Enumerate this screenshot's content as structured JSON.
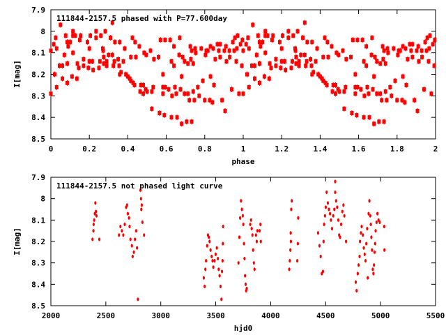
{
  "chart_data": [
    {
      "type": "scatter",
      "title": "111844-2157.5 phased with P=77.600day",
      "xlabel": "phase",
      "ylabel": "I[mag]",
      "xlim": [
        0,
        2
      ],
      "ylim": [
        7.9,
        8.5
      ],
      "y_inverted": true,
      "grid": false,
      "xticks": [
        0,
        0.2,
        0.4,
        0.6,
        0.8,
        1,
        1.2,
        1.4,
        1.6,
        1.8,
        2
      ],
      "xtick_labels": [
        "0",
        "0.2",
        "0.4",
        "0.6",
        "0.8",
        "1",
        "1.2",
        "1.4",
        "1.6",
        "1.8",
        "2"
      ],
      "yticks": [
        7.9,
        8.0,
        8.1,
        8.2,
        8.3,
        8.4,
        8.5
      ],
      "ytick_labels": [
        "7.9",
        "8",
        "8.1",
        "8.2",
        "8.3",
        "8.4",
        "8.5"
      ],
      "color": "#ff0000",
      "repeat_phase": true,
      "points": [
        [
          0.0,
          8.29
        ],
        [
          0.0,
          8.09
        ],
        [
          0.015,
          8.06
        ],
        [
          0.02,
          8.2
        ],
        [
          0.025,
          8.03
        ],
        [
          0.03,
          8.26
        ],
        [
          0.03,
          8.08
        ],
        [
          0.045,
          8.16
        ],
        [
          0.05,
          7.97
        ],
        [
          0.06,
          8.16
        ],
        [
          0.06,
          8.22
        ],
        [
          0.07,
          8.11
        ],
        [
          0.077,
          8.02
        ],
        [
          0.085,
          8.05
        ],
        [
          0.085,
          8.15
        ],
        [
          0.085,
          8.24
        ],
        [
          0.09,
          8.07
        ],
        [
          0.1,
          8.05
        ],
        [
          0.11,
          8.21
        ],
        [
          0.115,
          8.0
        ],
        [
          0.115,
          8.02
        ],
        [
          0.115,
          8.1
        ],
        [
          0.127,
          8.02
        ],
        [
          0.135,
          8.22
        ],
        [
          0.138,
          8.15
        ],
        [
          0.145,
          8.17
        ],
        [
          0.15,
          8.04
        ],
        [
          0.155,
          8.02
        ],
        [
          0.17,
          8.13
        ],
        [
          0.17,
          8.16
        ],
        [
          0.19,
          8.05
        ],
        [
          0.195,
          8.17
        ],
        [
          0.2,
          8.14
        ],
        [
          0.2,
          8.08
        ],
        [
          0.205,
          8.02
        ],
        [
          0.215,
          8.14
        ],
        [
          0.22,
          8.18
        ],
        [
          0.235,
          8.0
        ],
        [
          0.235,
          8.03
        ],
        [
          0.25,
          8.17
        ],
        [
          0.255,
          8.14
        ],
        [
          0.26,
          8.02
        ],
        [
          0.27,
          8.08
        ],
        [
          0.272,
          8.09
        ],
        [
          0.275,
          8.12
        ],
        [
          0.275,
          8.15
        ],
        [
          0.283,
          8.0
        ],
        [
          0.29,
          8.14
        ],
        [
          0.29,
          8.16
        ],
        [
          0.3,
          8.11
        ],
        [
          0.31,
          8.03
        ],
        [
          0.32,
          7.96
        ],
        [
          0.32,
          8.11
        ],
        [
          0.325,
          8.16
        ],
        [
          0.33,
          8.14
        ],
        [
          0.333,
          8.05
        ],
        [
          0.35,
          8.13
        ],
        [
          0.355,
          8.16
        ],
        [
          0.358,
          8.05
        ],
        [
          0.358,
          8.2
        ],
        [
          0.365,
          8.19
        ],
        [
          0.377,
          8.14
        ],
        [
          0.384,
          8.08
        ],
        [
          0.39,
          8.2
        ],
        [
          0.4,
          8.21
        ],
        [
          0.41,
          8.22
        ],
        [
          0.416,
          8.23
        ],
        [
          0.416,
          8.12
        ],
        [
          0.424,
          8.03
        ],
        [
          0.428,
          8.24
        ],
        [
          0.435,
          8.25
        ],
        [
          0.438,
          8.05
        ],
        [
          0.442,
          8.12
        ],
        [
          0.46,
          8.07
        ],
        [
          0.464,
          8.28
        ],
        [
          0.468,
          8.25
        ],
        [
          0.48,
          8.25
        ],
        [
          0.48,
          8.29
        ],
        [
          0.485,
          8.1
        ],
        [
          0.493,
          8.27
        ],
        [
          0.496,
          8.11
        ],
        [
          0.5,
          8.28
        ],
        [
          0.518,
          8.09
        ],
        [
          0.525,
          8.28
        ],
        [
          0.525,
          8.36
        ],
        [
          0.532,
          8.26
        ],
        [
          0.536,
          8.13
        ],
        [
          0.56,
          8.12
        ],
        [
          0.565,
          8.38
        ],
        [
          0.57,
          8.04
        ],
        [
          0.583,
          8.2
        ],
        [
          0.583,
          8.26
        ],
        [
          0.583,
          8.29
        ],
        [
          0.59,
          8.39
        ],
        [
          0.594,
          8.26
        ],
        [
          0.594,
          8.04
        ],
        [
          0.612,
          8.27
        ],
        [
          0.62,
          8.04
        ],
        [
          0.627,
          8.14
        ],
        [
          0.627,
          8.4
        ],
        [
          0.63,
          8.3
        ],
        [
          0.64,
          8.16
        ],
        [
          0.64,
          8.07
        ],
        [
          0.645,
          8.26
        ],
        [
          0.652,
          8.29
        ],
        [
          0.656,
          8.4
        ],
        [
          0.67,
          8.03
        ],
        [
          0.667,
          8.11
        ],
        [
          0.674,
          8.27
        ],
        [
          0.68,
          8.43
        ],
        [
          0.68,
          8.21
        ],
        [
          0.685,
          8.12
        ],
        [
          0.695,
          8.14
        ],
        [
          0.695,
          8.29
        ],
        [
          0.706,
          8.42
        ],
        [
          0.713,
          8.29
        ],
        [
          0.713,
          8.15
        ],
        [
          0.72,
          8.32
        ],
        [
          0.725,
          8.07
        ],
        [
          0.728,
          8.13
        ],
        [
          0.732,
          8.09
        ],
        [
          0.732,
          8.42
        ],
        [
          0.74,
          8.15
        ],
        [
          0.74,
          8.28
        ],
        [
          0.746,
          8.32
        ],
        [
          0.75,
          8.08
        ],
        [
          0.753,
          8.1
        ],
        [
          0.764,
          8.26
        ],
        [
          0.771,
          8.3
        ],
        [
          0.782,
          8.08
        ],
        [
          0.79,
          8.23
        ],
        [
          0.8,
          8.32
        ],
        [
          0.804,
          8.11
        ],
        [
          0.808,
          8.09
        ],
        [
          0.816,
          8.09
        ],
        [
          0.826,
          8.32
        ],
        [
          0.83,
          8.07
        ],
        [
          0.83,
          8.21
        ],
        [
          0.84,
          8.33
        ],
        [
          0.844,
          8.08
        ],
        [
          0.848,
          8.25
        ],
        [
          0.855,
          8.13
        ],
        [
          0.866,
          8.06
        ],
        [
          0.873,
          8.09
        ],
        [
          0.88,
          8.06
        ],
        [
          0.88,
          8.12
        ],
        [
          0.89,
          8.32
        ],
        [
          0.902,
          8.09
        ],
        [
          0.906,
          8.37
        ],
        [
          0.91,
          8.07
        ],
        [
          0.913,
          8.14
        ],
        [
          0.928,
          8.09
        ],
        [
          0.93,
          8.12
        ],
        [
          0.94,
          8.27
        ],
        [
          0.946,
          8.05
        ],
        [
          0.953,
          8.09
        ],
        [
          0.957,
          8.03
        ],
        [
          0.964,
          8.14
        ],
        [
          0.967,
          8.08
        ],
        [
          0.971,
          8.02
        ],
        [
          0.978,
          8.29
        ],
        [
          0.986,
          8.06
        ],
        [
          0.993,
          8.16
        ],
        [
          0.996,
          8.04
        ]
      ]
    },
    {
      "type": "scatter",
      "title": "111844-2157.5 not phased light curve",
      "xlabel": "hjd0",
      "ylabel": "I[mag]",
      "xlim": [
        2000,
        5500
      ],
      "ylim": [
        7.9,
        8.5
      ],
      "y_inverted": true,
      "grid": false,
      "xticks": [
        2000,
        2500,
        3000,
        3500,
        4000,
        4500,
        5000,
        5500
      ],
      "xtick_labels": [
        "2000",
        "2500",
        "3000",
        "3500",
        "4000",
        "4500",
        "5000",
        "5500"
      ],
      "yticks": [
        7.9,
        8.0,
        8.1,
        8.2,
        8.3,
        8.4,
        8.5
      ],
      "ytick_labels": [
        "7.9",
        "8",
        "8.1",
        "8.2",
        "8.3",
        "8.4",
        "8.5"
      ],
      "color": "#ff0000",
      "points": [
        [
          2379,
          8.19
        ],
        [
          2387,
          8.15
        ],
        [
          2389,
          8.12
        ],
        [
          2394,
          8.1
        ],
        [
          2400,
          8.07
        ],
        [
          2405,
          8.02
        ],
        [
          2410,
          8.06
        ],
        [
          2415,
          8.08
        ],
        [
          2441,
          8.19
        ],
        [
          2620,
          8.17
        ],
        [
          2633,
          8.13
        ],
        [
          2646,
          8.15
        ],
        [
          2659,
          8.17
        ],
        [
          2672,
          8.12
        ],
        [
          2685,
          8.04
        ],
        [
          2693,
          8.03
        ],
        [
          2700,
          8.07
        ],
        [
          2711,
          8.09
        ],
        [
          2716,
          8.13
        ],
        [
          2724,
          8.19
        ],
        [
          2737,
          8.22
        ],
        [
          2744,
          8.27
        ],
        [
          2755,
          8.25
        ],
        [
          2765,
          8.19
        ],
        [
          2776,
          8.15
        ],
        [
          2784,
          8.23
        ],
        [
          2792,
          8.47
        ],
        [
          2815,
          7.96
        ],
        [
          2820,
          8.0
        ],
        [
          2823,
          8.05
        ],
        [
          2827,
          8.03
        ],
        [
          2833,
          8.11
        ],
        [
          2848,
          8.17
        ],
        [
          3391,
          8.37
        ],
        [
          3399,
          8.41
        ],
        [
          3406,
          8.33
        ],
        [
          3412,
          8.29
        ],
        [
          3422,
          8.22
        ],
        [
          3429,
          8.17
        ],
        [
          3437,
          8.18
        ],
        [
          3444,
          8.2
        ],
        [
          3453,
          8.24
        ],
        [
          3463,
          8.27
        ],
        [
          3471,
          8.29
        ],
        [
          3478,
          8.32
        ],
        [
          3489,
          8.29
        ],
        [
          3499,
          8.26
        ],
        [
          3510,
          8.23
        ],
        [
          3520,
          8.28
        ],
        [
          3527,
          8.33
        ],
        [
          3535,
          8.36
        ],
        [
          3544,
          8.41
        ],
        [
          3552,
          8.47
        ],
        [
          3557,
          8.34
        ],
        [
          3562,
          8.29
        ],
        [
          3565,
          8.21
        ],
        [
          3567,
          8.13
        ],
        [
          3707,
          8.3
        ],
        [
          3715,
          8.18
        ],
        [
          3722,
          8.09
        ],
        [
          3730,
          8.01
        ],
        [
          3738,
          8.05
        ],
        [
          3746,
          8.08
        ],
        [
          3751,
          8.12
        ],
        [
          3757,
          8.21
        ],
        [
          3762,
          8.28
        ],
        [
          3767,
          8.36
        ],
        [
          3772,
          8.4
        ],
        [
          3777,
          8.43
        ],
        [
          3782,
          8.42
        ],
        [
          3814,
          8.12
        ],
        [
          3821,
          8.1
        ],
        [
          3827,
          8.14
        ],
        [
          3834,
          8.17
        ],
        [
          3840,
          8.24
        ],
        [
          3847,
          8.3
        ],
        [
          3853,
          8.33
        ],
        [
          3866,
          8.17
        ],
        [
          3873,
          8.2
        ],
        [
          3879,
          8.15
        ],
        [
          3899,
          8.15
        ],
        [
          3907,
          8.12
        ],
        [
          3910,
          8.2
        ],
        [
          4169,
          8.33
        ],
        [
          4174,
          8.29
        ],
        [
          4179,
          8.24
        ],
        [
          4182,
          8.16
        ],
        [
          4184,
          8.2
        ],
        [
          4187,
          8.05
        ],
        [
          4192,
          8.01
        ],
        [
          4242,
          8.29
        ],
        [
          4247,
          8.21
        ],
        [
          4250,
          8.09
        ],
        [
          4431,
          8.16
        ],
        [
          4444,
          8.22
        ],
        [
          4455,
          8.27
        ],
        [
          4465,
          8.35
        ],
        [
          4476,
          8.34
        ],
        [
          4481,
          8.2
        ],
        [
          4486,
          8.12
        ],
        [
          4494,
          8.08
        ],
        [
          4501,
          8.04
        ],
        [
          4509,
          7.97
        ],
        [
          4520,
          8.02
        ],
        [
          4530,
          8.05
        ],
        [
          4540,
          8.07
        ],
        [
          4548,
          8.1
        ],
        [
          4558,
          8.14
        ],
        [
          4569,
          8.08
        ],
        [
          4579,
          8.05
        ],
        [
          4587,
          7.97
        ],
        [
          4587,
          7.92
        ],
        [
          4595,
          8.01
        ],
        [
          4605,
          8.04
        ],
        [
          4615,
          8.1
        ],
        [
          4623,
          8.17
        ],
        [
          4631,
          8.18
        ],
        [
          4641,
          8.12
        ],
        [
          4652,
          8.06
        ],
        [
          4662,
          8.03
        ],
        [
          4670,
          8.08
        ],
        [
          4686,
          8.2
        ],
        [
          4774,
          8.39
        ],
        [
          4782,
          8.43
        ],
        [
          4792,
          8.35
        ],
        [
          4800,
          8.31
        ],
        [
          4809,
          8.27
        ],
        [
          4813,
          8.2
        ],
        [
          4821,
          8.16
        ],
        [
          4828,
          8.13
        ],
        [
          4839,
          8.17
        ],
        [
          4847,
          8.23
        ],
        [
          4855,
          8.26
        ],
        [
          4863,
          8.29
        ],
        [
          4870,
          8.21
        ],
        [
          4878,
          8.14
        ],
        [
          4883,
          8.37
        ],
        [
          4891,
          8.07
        ],
        [
          4898,
          8.01
        ],
        [
          4906,
          8.08
        ],
        [
          4911,
          8.12
        ],
        [
          4916,
          8.18
        ],
        [
          4922,
          8.24
        ],
        [
          4929,
          8.33
        ],
        [
          4935,
          8.35
        ],
        [
          4940,
          8.31
        ],
        [
          4945,
          8.25
        ],
        [
          4950,
          8.21
        ],
        [
          4955,
          8.15
        ],
        [
          4963,
          8.11
        ],
        [
          4971,
          8.07
        ],
        [
          4981,
          8.1
        ],
        [
          4992,
          8.11
        ],
        [
          5033,
          8.13
        ],
        [
          5035,
          8.24
        ]
      ]
    }
  ]
}
